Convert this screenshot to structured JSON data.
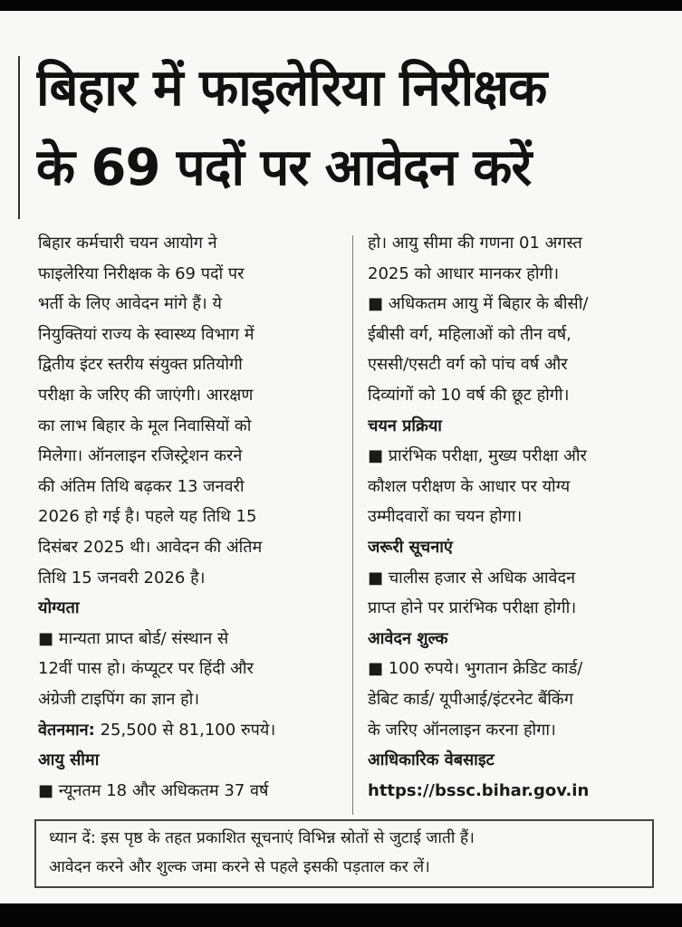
{
  "headline": [
    "बिहार में फाइलेरिया निरीक्षक",
    "के 69 पदों पर आवेदन करें"
  ],
  "left_column": [
    {
      "text": "बिहार कर्मचारी चयन आयोग ने"
    },
    {
      "text": "फाइलेरिया निरीक्षक के 69 पदों पर"
    },
    {
      "text": "भर्ती के लिए आवेदन मांगे हैं। ये"
    },
    {
      "text": "नियुक्तियां राज्य के स्वास्थ्य विभाग में"
    },
    {
      "text": "द्वितीय इंटर स्तरीय संयुक्त प्रतियोगी"
    },
    {
      "text": "परीक्षा के जरिए की जाएंगी। आरक्षण"
    },
    {
      "text": "का लाभ बिहार के मूल निवासियों को"
    },
    {
      "text": "मिलेगा। ऑनलाइन रजिस्ट्रेशन करने"
    },
    {
      "text": "की अंतिम तिथि बढ़कर 13 जनवरी"
    },
    {
      "text": "2026 हो गई है। पहले यह तिथि 15"
    },
    {
      "text": "दिसंबर 2025 थी। आवेदन की अंतिम"
    },
    {
      "text": "तिथि 15 जनवरी 2026 है।"
    },
    {
      "heading": "योग्यता"
    },
    {
      "text": "■ मान्यता प्राप्त बोर्ड/ संस्थान से"
    },
    {
      "text": "12वीं पास हो। कंप्यूटर पर हिंदी और"
    },
    {
      "text": "अंग्रेजी टाइपिंग का ज्ञान हो।"
    },
    {
      "label": "वेतनमान:",
      "text": "25,500 से 81,100 रुपये।"
    },
    {
      "heading": "आयु सीमा"
    },
    {
      "text": "■ न्यूनतम 18 और अधिकतम 37 वर्ष"
    }
  ],
  "right_column": [
    {
      "text": "हो। आयु सीमा की गणना 01 अगस्त"
    },
    {
      "text": "2025 को आधार मानकर होगी।"
    },
    {
      "text": "■ अधिकतम आयु में बिहार के बीसी/"
    },
    {
      "text": "ईबीसी वर्ग, महिलाओं को तीन वर्ष,"
    },
    {
      "text": "एससी/एसटी वर्ग को पांच वर्ष और"
    },
    {
      "text": "दिव्यांगों को 10 वर्ष की छूट होगी।"
    },
    {
      "heading": "चयन प्रक्रिया"
    },
    {
      "text": "■ प्रारंभिक परीक्षा, मुख्य परीक्षा और"
    },
    {
      "text": "कौशल परीक्षण के आधार पर योग्य"
    },
    {
      "text": "उम्मीदवारों का चयन होगा।"
    },
    {
      "heading": "जरूरी सूचनाएं"
    },
    {
      "text": "■ चालीस हजार से अधिक आवेदन"
    },
    {
      "text": "प्राप्त होने पर प्रारंभिक परीक्षा होगी।"
    },
    {
      "heading": "आवेदन शुल्क"
    },
    {
      "text": "■ 100 रुपये। भुगतान क्रेडिट कार्ड/"
    },
    {
      "text": "डेबिट कार्ड/ यूपीआई/इंटरनेट बैंकिंग"
    },
    {
      "text": "के जरिए ऑनलाइन करना होगा।"
    },
    {
      "heading": "आधिकारिक वेबसाइट"
    },
    {
      "heading": "https://bssc.bihar.gov.in"
    }
  ],
  "note": [
    "ध्यान दें: इस पृष्ठ के तहत प्रकाशित सूचनाएं विभिन्न स्रोतों से जुटाई जाती हैं।",
    "आवेदन करने और शुल्क जमा करने से पहले इसकी पड़ताल कर लें।"
  ]
}
